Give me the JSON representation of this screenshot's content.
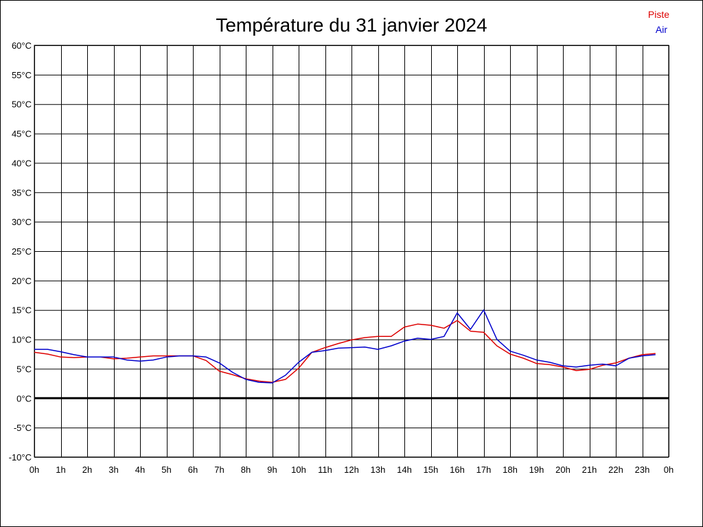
{
  "chart_data": {
    "type": "line",
    "title": "Température du 31 janvier 2024",
    "xlabel": "",
    "ylabel": "",
    "ylim": [
      -10,
      60
    ],
    "xlim": [
      0,
      24
    ],
    "grid": true,
    "legend_position": "top-right",
    "y_ticks": [
      {
        "value": 60,
        "label": "60°C"
      },
      {
        "value": 55,
        "label": "55°C"
      },
      {
        "value": 50,
        "label": "50°C"
      },
      {
        "value": 45,
        "label": "45°C"
      },
      {
        "value": 40,
        "label": "40°C"
      },
      {
        "value": 35,
        "label": "35°C"
      },
      {
        "value": 30,
        "label": "30°C"
      },
      {
        "value": 25,
        "label": "25°C"
      },
      {
        "value": 20,
        "label": "20°C"
      },
      {
        "value": 15,
        "label": "15°C"
      },
      {
        "value": 10,
        "label": "10°C"
      },
      {
        "value": 5,
        "label": "5°C"
      },
      {
        "value": 0,
        "label": "0°C"
      },
      {
        "value": -5,
        "label": "-5°C"
      },
      {
        "value": -10,
        "label": "-10°C"
      }
    ],
    "x_ticks": [
      {
        "value": 0,
        "label": "0h"
      },
      {
        "value": 1,
        "label": "1h"
      },
      {
        "value": 2,
        "label": "2h"
      },
      {
        "value": 3,
        "label": "3h"
      },
      {
        "value": 4,
        "label": "4h"
      },
      {
        "value": 5,
        "label": "5h"
      },
      {
        "value": 6,
        "label": "6h"
      },
      {
        "value": 7,
        "label": "7h"
      },
      {
        "value": 8,
        "label": "8h"
      },
      {
        "value": 9,
        "label": "9h"
      },
      {
        "value": 10,
        "label": "10h"
      },
      {
        "value": 11,
        "label": "11h"
      },
      {
        "value": 12,
        "label": "12h"
      },
      {
        "value": 13,
        "label": "13h"
      },
      {
        "value": 14,
        "label": "14h"
      },
      {
        "value": 15,
        "label": "15h"
      },
      {
        "value": 16,
        "label": "16h"
      },
      {
        "value": 17,
        "label": "17h"
      },
      {
        "value": 18,
        "label": "18h"
      },
      {
        "value": 19,
        "label": "19h"
      },
      {
        "value": 20,
        "label": "20h"
      },
      {
        "value": 21,
        "label": "21h"
      },
      {
        "value": 22,
        "label": "22h"
      },
      {
        "value": 23,
        "label": "23h"
      },
      {
        "value": 24,
        "label": "0h"
      }
    ],
    "series": [
      {
        "name": "Piste",
        "color": "#dd0000",
        "x": [
          0,
          0.5,
          1,
          1.5,
          2,
          2.5,
          3,
          3.5,
          4,
          4.5,
          5,
          5.5,
          6,
          6.5,
          7,
          7.5,
          8,
          8.5,
          9,
          9.5,
          10,
          10.5,
          11,
          11.5,
          12,
          12.5,
          13,
          13.5,
          14,
          14.5,
          15,
          15.5,
          16,
          16.5,
          17,
          17.5,
          18,
          18.5,
          19,
          19.5,
          20,
          20.5,
          21,
          21.5,
          22,
          22.5,
          23,
          23.5
        ],
        "values": [
          7.8,
          7.5,
          7.0,
          6.9,
          7.0,
          7.0,
          6.7,
          6.8,
          7.0,
          7.2,
          7.2,
          7.2,
          7.2,
          6.4,
          4.6,
          4.0,
          3.3,
          2.9,
          2.7,
          3.2,
          5.1,
          7.8,
          8.6,
          9.3,
          9.9,
          10.3,
          10.5,
          10.5,
          12.1,
          12.6,
          12.4,
          11.9,
          13.2,
          11.4,
          11.2,
          8.9,
          7.5,
          6.8,
          5.9,
          5.7,
          5.3,
          4.7,
          4.9,
          5.6,
          6.0,
          6.8,
          7.4,
          7.6
        ]
      },
      {
        "name": "Air",
        "color": "#0000cc",
        "x": [
          0,
          0.5,
          1,
          1.5,
          2,
          2.5,
          3,
          3.5,
          4,
          4.5,
          5,
          5.5,
          6,
          6.5,
          7,
          7.5,
          8,
          8.5,
          9,
          9.5,
          10,
          10.5,
          11,
          11.5,
          12,
          12.5,
          13,
          13.5,
          14,
          14.5,
          15,
          15.5,
          16,
          16.5,
          17,
          17.5,
          18,
          18.5,
          19,
          19.5,
          20,
          20.5,
          21,
          21.5,
          22,
          22.5,
          23,
          23.5
        ],
        "values": [
          8.3,
          8.3,
          7.9,
          7.4,
          7.0,
          7.0,
          7.0,
          6.5,
          6.3,
          6.5,
          7.0,
          7.2,
          7.2,
          7.0,
          6.0,
          4.4,
          3.2,
          2.7,
          2.6,
          3.9,
          6.1,
          7.8,
          8.1,
          8.5,
          8.6,
          8.7,
          8.3,
          8.9,
          9.7,
          10.2,
          10.0,
          10.5,
          14.5,
          11.7,
          15.0,
          10.0,
          8.0,
          7.3,
          6.5,
          6.1,
          5.5,
          5.3,
          5.6,
          5.8,
          5.5,
          6.8,
          7.2,
          7.4
        ]
      }
    ]
  }
}
